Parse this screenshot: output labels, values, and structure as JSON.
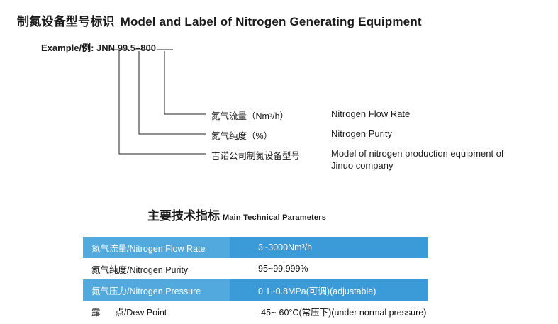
{
  "header": {
    "title_cn": "制氮设备型号标识",
    "title_en": "Model and Label of Nitrogen Generating Equipment"
  },
  "example": {
    "prefix": "Example/例:",
    "code_1": "JNN",
    "code_2": "99.5",
    "code_3": "–800"
  },
  "labels": [
    {
      "cn": "氮气流量（Nm³/h）",
      "en": "Nitrogen Flow Rate"
    },
    {
      "cn": "氮气纯度（%）",
      "en": "Nitrogen Purity"
    },
    {
      "cn": "吉诺公司制氮设备型号",
      "en_line1": "Model of nitrogen production equipment of",
      "en_line2": "Jinuo company"
    }
  ],
  "params": {
    "title_cn": "主要技术指标",
    "title_en": "Main Technical Parameters",
    "rows": [
      {
        "key": "氮气流量/Nitrogen Flow Rate",
        "value": "3~3000Nm³/h"
      },
      {
        "key": "氮气纯度/Nitrogen Purity",
        "value": "95~99.999%"
      },
      {
        "key": "氮气压力/Nitrogen Pressure",
        "value": "0.1~0.8MPa(可调)(adjustable)"
      },
      {
        "key": "露      点/Dew Point",
        "value": "-45~-60°C(常压下)(under normal pressure)"
      }
    ]
  },
  "colors": {
    "row_blue": "#52a9dd",
    "row_blue_value": "#3b9ad8"
  }
}
